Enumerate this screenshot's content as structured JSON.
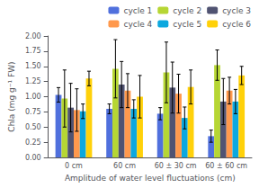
{
  "chart_data": {
    "type": "bar",
    "xlabel": "Amplitude of water level fluctuations (cm)",
    "ylabel": "Chla (mg g⁻¹ FW)",
    "categories": [
      "0 cm",
      "60 cm",
      "60 ± 30 cm",
      "60 ± 60 cm"
    ],
    "series": [
      {
        "name": "cycle 1",
        "values": [
          1.03,
          0.8,
          0.72,
          0.35
        ],
        "errors": [
          0.12,
          0.08,
          0.1,
          0.1
        ]
      },
      {
        "name": "cycle 2",
        "values": [
          0.97,
          1.46,
          1.4,
          1.52
        ],
        "errors": [
          0.47,
          0.48,
          0.5,
          0.25
        ]
      },
      {
        "name": "cycle 3",
        "values": [
          0.82,
          1.2,
          1.15,
          0.92
        ],
        "errors": [
          0.4,
          0.38,
          0.42,
          0.38
        ]
      },
      {
        "name": "cycle 4",
        "values": [
          0.78,
          1.1,
          1.05,
          1.1
        ],
        "errors": [
          0.35,
          0.28,
          0.32,
          0.22
        ]
      },
      {
        "name": "cycle 5",
        "values": [
          0.76,
          0.8,
          0.65,
          0.92
        ],
        "errors": [
          0.12,
          0.15,
          0.18,
          0.2
        ]
      },
      {
        "name": "cycle 6",
        "values": [
          1.3,
          1.0,
          1.16,
          1.35
        ],
        "errors": [
          0.12,
          0.35,
          0.28,
          0.15
        ]
      }
    ],
    "ylim": [
      0.0,
      2.0
    ],
    "yticks": [
      {
        "value": 0.0,
        "label": "0.00"
      },
      0.25,
      {
        "value": 0.5,
        "label": "0.50"
      },
      0.75,
      {
        "value": 1.0,
        "label": "1.00"
      },
      1.25,
      {
        "value": 1.5,
        "label": "1.50"
      },
      1.75,
      {
        "value": 2.0,
        "label": "2.00"
      }
    ],
    "grid": false,
    "legend": "upper right"
  }
}
